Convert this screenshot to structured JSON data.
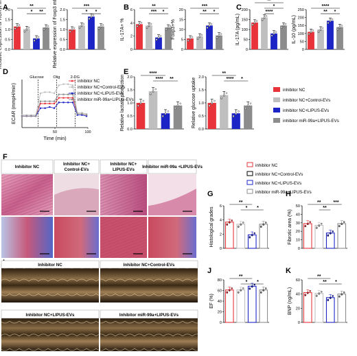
{
  "colors": {
    "red": "#e8333a",
    "grey": "#bfbfbf",
    "blue": "#1c24c6",
    "dgrey": "#8c8c8c"
  },
  "legend": [
    "inhibitor NC",
    "inhibitor NC+Control-EVs",
    "inhibitor NC+LIPUS-EVs",
    "inhibitor miR-99a+LIPUS-EVs"
  ],
  "panel_letters": [
    "A",
    "B",
    "C",
    "D",
    "E",
    "F",
    "G",
    "H",
    "I",
    "J",
    "K"
  ],
  "chart_data": [
    {
      "id": "A1",
      "panel": "A",
      "type": "bar",
      "ylabel": "Relative expression of RORγt mRNA",
      "ylim": [
        0,
        2
      ],
      "yticks": [
        "0.0",
        "0.5",
        "1.0",
        "1.5",
        "2.0"
      ],
      "values": [
        1.15,
        1.02,
        0.55,
        1.1
      ],
      "sig": [
        {
          "from": 0,
          "to": 3,
          "text": "**",
          "lvl": 2
        },
        {
          "from": 1,
          "to": 2,
          "text": "*",
          "lvl": 1
        },
        {
          "from": 2,
          "to": 3,
          "text": "**",
          "lvl": 1
        }
      ]
    },
    {
      "id": "A2",
      "panel": "A",
      "type": "bar",
      "ylabel": "Relative expression of Foxp3 mRNA",
      "ylim": [
        0,
        2
      ],
      "yticks": [
        "0.0",
        "0.5",
        "1.0",
        "1.5",
        "2.0"
      ],
      "values": [
        1.0,
        1.2,
        1.65,
        1.15
      ],
      "sig": [
        {
          "from": 0,
          "to": 3,
          "text": "***",
          "lvl": 2
        },
        {
          "from": 1,
          "to": 2,
          "text": "*",
          "lvl": 1
        },
        {
          "from": 2,
          "to": 3,
          "text": "*",
          "lvl": 1
        }
      ]
    },
    {
      "id": "B1",
      "panel": "B",
      "type": "bar",
      "ylabel": "IL-17A+ %",
      "ylim": [
        0,
        6
      ],
      "yticks": [
        "0",
        "2",
        "4",
        "6"
      ],
      "values": [
        3.8,
        3.6,
        1.8,
        3.3
      ],
      "sig": [
        {
          "from": 0,
          "to": 3,
          "text": "**",
          "lvl": 2
        },
        {
          "from": 1,
          "to": 2,
          "text": "***",
          "lvl": 1
        },
        {
          "from": 2,
          "to": 3,
          "text": "*",
          "lvl": 1
        }
      ]
    },
    {
      "id": "B2",
      "panel": "B",
      "type": "bar",
      "ylabel": "Foxp3+%",
      "ylim": [
        0,
        20
      ],
      "yticks": [
        "0",
        "5",
        "10",
        "15",
        "20"
      ],
      "values": [
        5.5,
        6.5,
        12.0,
        7.0
      ],
      "sig": [
        {
          "from": 0,
          "to": 3,
          "text": "***",
          "lvl": 2
        },
        {
          "from": 1,
          "to": 2,
          "text": "**",
          "lvl": 1
        },
        {
          "from": 2,
          "to": 3,
          "text": "*",
          "lvl": 1
        }
      ]
    },
    {
      "id": "C1",
      "panel": "C",
      "type": "bar",
      "ylabel": "IL-17A (pg/mL)",
      "ylim": [
        0,
        200
      ],
      "yticks": [
        "0",
        "50",
        "100",
        "150",
        "200"
      ],
      "values": [
        135,
        160,
        80,
        120
      ],
      "sig": [
        {
          "from": 0,
          "to": 3,
          "text": "**",
          "lvl": 3
        },
        {
          "from": 1,
          "to": 3,
          "text": "*",
          "lvl": 2
        },
        {
          "from": 1,
          "to": 2,
          "text": "****",
          "lvl": 1
        }
      ]
    },
    {
      "id": "C2",
      "panel": "C",
      "type": "bar",
      "ylabel": "IL-10 (pg/mL)",
      "ylim": [
        0,
        250
      ],
      "yticks": [
        "0",
        "50",
        "100",
        "150",
        "200",
        "250"
      ],
      "values": [
        110,
        125,
        180,
        140
      ],
      "sig": [
        {
          "from": 0,
          "to": 3,
          "text": "****",
          "lvl": 2
        },
        {
          "from": 1,
          "to": 2,
          "text": "**",
          "lvl": 1
        },
        {
          "from": 2,
          "to": 3,
          "text": "*",
          "lvl": 1
        }
      ]
    },
    {
      "id": "E1",
      "panel": "E",
      "type": "bar",
      "ylabel": "Relative lactate production",
      "ylim": [
        0,
        2
      ],
      "yticks": [
        "0.0",
        "0.5",
        "1.0",
        "1.5",
        "2.0"
      ],
      "values": [
        1.0,
        1.45,
        0.6,
        0.9
      ],
      "sig": [
        {
          "from": 0,
          "to": 2,
          "text": "****",
          "lvl": 2
        },
        {
          "from": 1,
          "to": 2,
          "text": "****",
          "lvl": 1
        },
        {
          "from": 2,
          "to": 3,
          "text": "**",
          "lvl": 1
        }
      ]
    },
    {
      "id": "E2",
      "panel": "E",
      "type": "bar",
      "ylabel": "Relative glucose uptake",
      "ylim": [
        0,
        2
      ],
      "yticks": [
        "0.0",
        "0.5",
        "1.0",
        "1.5",
        "2.0"
      ],
      "values": [
        1.0,
        1.3,
        0.6,
        0.9
      ],
      "sig": [
        {
          "from": 0,
          "to": 2,
          "text": "**",
          "lvl": 2
        },
        {
          "from": 1,
          "to": 2,
          "text": "****",
          "lvl": 1
        },
        {
          "from": 2,
          "to": 3,
          "text": "*",
          "lvl": 1
        }
      ]
    },
    {
      "id": "G",
      "panel": "G",
      "type": "bar",
      "ylabel": "Histological grades",
      "ylim": [
        0,
        6
      ],
      "yticks": [
        "0",
        "2",
        "4",
        "6"
      ],
      "values": [
        3.7,
        3.4,
        1.9,
        3.4
      ],
      "sig": [
        {
          "from": 0,
          "to": 2,
          "text": "**",
          "lvl": 2
        },
        {
          "from": 1,
          "to": 2,
          "text": "*",
          "lvl": 1
        },
        {
          "from": 2,
          "to": 3,
          "text": "*",
          "lvl": 1
        }
      ]
    },
    {
      "id": "H",
      "panel": "H",
      "type": "bar",
      "ylabel": "Fibrotic area (%)",
      "ylim": [
        0,
        50
      ],
      "yticks": [
        "0",
        "10",
        "20",
        "30",
        "40",
        "50"
      ],
      "values": [
        29,
        27,
        18,
        29
      ],
      "sig": [
        {
          "from": 0,
          "to": 2,
          "text": "**",
          "lvl": 2
        },
        {
          "from": 1,
          "to": 2,
          "text": "**",
          "lvl": 1
        },
        {
          "from": 2,
          "to": 3,
          "text": "***",
          "lvl": 2
        }
      ]
    },
    {
      "id": "J",
      "panel": "J",
      "type": "bar",
      "ylabel": "EF (%)",
      "ylim": [
        0,
        80
      ],
      "yticks": [
        "0",
        "20",
        "40",
        "60",
        "80"
      ],
      "values": [
        61,
        61,
        68,
        61
      ],
      "sig": [
        {
          "from": 0,
          "to": 2,
          "text": "**",
          "lvl": 2
        },
        {
          "from": 1,
          "to": 2,
          "text": "*",
          "lvl": 1
        },
        {
          "from": 2,
          "to": 3,
          "text": "*",
          "lvl": 1
        }
      ]
    },
    {
      "id": "K",
      "panel": "K",
      "type": "bar",
      "ylabel": "BNP (ng/mL)",
      "ylim": [
        0,
        60
      ],
      "yticks": [
        "0",
        "20",
        "40",
        "60"
      ],
      "values": [
        42,
        41,
        35,
        40
      ],
      "sig": [
        {
          "from": 0,
          "to": 2,
          "text": "**",
          "lvl": 2
        },
        {
          "from": 1,
          "to": 2,
          "text": "**",
          "lvl": 1
        },
        {
          "from": 2,
          "to": 3,
          "text": "*",
          "lvl": 1
        }
      ]
    },
    {
      "id": "D",
      "panel": "D",
      "type": "line",
      "ylabel": "ECAR (mmpH/min)",
      "xlabel": "Time (min)",
      "xticks": [
        "50",
        "100"
      ],
      "annotations": [
        "Glucose",
        "Olig",
        "2-DG"
      ],
      "x": [
        0,
        7,
        14,
        21,
        28,
        35,
        42,
        49,
        56,
        63,
        70,
        77,
        84,
        91,
        98
      ],
      "series": [
        {
          "name": "inhibitor NC",
          "values": [
            1.0,
            1.0,
            1.0,
            1.0,
            2.1,
            2.1,
            2.1,
            2.1,
            2.6,
            2.6,
            2.6,
            2.6,
            1.2,
            1.2,
            1.1
          ]
        },
        {
          "name": "inhibitor NC+Control-EVs",
          "values": [
            1.1,
            1.1,
            1.1,
            1.1,
            3.0,
            3.1,
            3.1,
            3.0,
            3.7,
            3.8,
            3.8,
            3.7,
            1.3,
            1.3,
            1.2
          ]
        },
        {
          "name": "inhibitor NC+LIPUS-EVs",
          "values": [
            1.0,
            1.0,
            1.0,
            1.0,
            1.7,
            1.7,
            1.8,
            1.7,
            2.2,
            2.2,
            2.2,
            2.2,
            1.1,
            1.1,
            1.0
          ]
        },
        {
          "name": "inhibitor miR-99a+LIPUS-EVs",
          "values": [
            1.0,
            1.0,
            1.0,
            1.0,
            2.3,
            2.3,
            2.3,
            2.3,
            2.9,
            2.9,
            2.9,
            2.9,
            1.2,
            1.2,
            1.1
          ]
        }
      ]
    }
  ],
  "histology": {
    "titles": [
      "Inhibitor NC",
      "Inhibitor NC+ Control-EVs",
      "Inhibitor NC+ LIPUS-EVs",
      "Inhibitor miR-99a +LIPUS-EVs"
    ]
  },
  "echo": {
    "titles": [
      "Inhibitor NC",
      "Inhibitor NC+Control-EVs",
      "Inhibitor NC+LIPUS-EVs",
      "Inhibitor miR-99a+LIPUS-EVs"
    ]
  }
}
